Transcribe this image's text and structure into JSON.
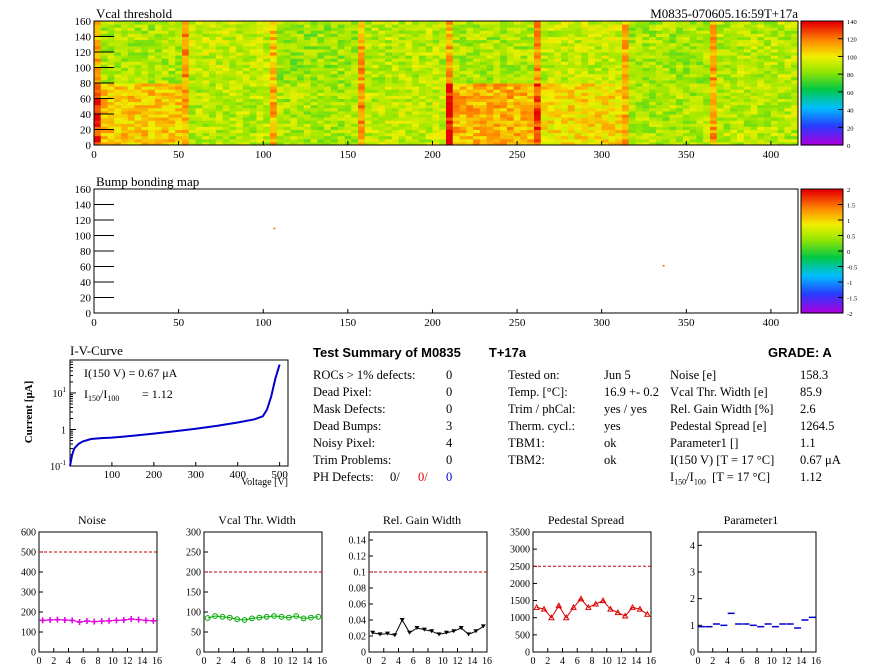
{
  "vcal_map": {
    "title": "Vcal threshold",
    "module_label": "M0835-070605.16:59T+17a",
    "x_ticks": [
      "0",
      "50",
      "100",
      "150",
      "200",
      "250",
      "300",
      "350",
      "400"
    ],
    "y_ticks": [
      "0",
      "20",
      "40",
      "60",
      "80",
      "100",
      "120",
      "140",
      "160"
    ],
    "scale_ticks": [
      "0",
      "20",
      "40",
      "60",
      "80",
      "100",
      "120",
      "140"
    ]
  },
  "bump_map": {
    "title": "Bump bonding map",
    "x_ticks": [
      "0",
      "50",
      "100",
      "150",
      "200",
      "250",
      "300",
      "350",
      "400"
    ],
    "y_ticks": [
      "0",
      "20",
      "40",
      "60",
      "80",
      "100",
      "120",
      "140",
      "160"
    ],
    "scale_ticks": [
      "-2",
      "-1.5",
      "-1",
      "-0.5",
      "0",
      "0.5",
      "1",
      "1.5",
      "2"
    ]
  },
  "iv_curve": {
    "title": "I-V-Curve",
    "current_line": "I(150 V) = 0.67 μA",
    "ratio_line_value": "=  1.12",
    "ylabel": "Current [μA]",
    "xlabel": "Voltage [V]",
    "x_ticks": [
      "100",
      "200",
      "300",
      "400",
      "500"
    ],
    "y_ticks_base": "10",
    "y_ticks_exp": [
      "-1",
      "",
      "1"
    ]
  },
  "summary": {
    "title": "Test Summary of M0835",
    "temp_tag": "T+17a",
    "grade": "GRADE:  A",
    "left": [
      {
        "label": "ROCs > 1% defects:",
        "value": "0"
      },
      {
        "label": "Dead Pixel:",
        "value": "0"
      },
      {
        "label": "Mask Defects:",
        "value": "0"
      },
      {
        "label": "Dead Bumps:",
        "value": "3"
      },
      {
        "label": "Noisy Pixel:",
        "value": "4"
      },
      {
        "label": "Trim Problems:",
        "value": "0"
      }
    ],
    "ph_defects": {
      "label": "PH Defects:",
      "v1": "0/",
      "v2": "0/",
      "v3": "0"
    },
    "middle": [
      {
        "label": "Tested on:",
        "value": "Jun 5"
      },
      {
        "label": "Temp. [°C]:",
        "value": "16.9 +- 0.2"
      },
      {
        "label": "Trim / phCal:",
        "value": "yes / yes"
      },
      {
        "label": "Therm. cycl.:",
        "value": "yes"
      },
      {
        "label": "TBM1:",
        "value": "ok"
      },
      {
        "label": "TBM2:",
        "value": "ok"
      }
    ],
    "right": [
      {
        "label": "Noise [e]",
        "value": "158.3"
      },
      {
        "label": "Vcal Thr. Width [e]",
        "value": "85.9"
      },
      {
        "label": "Rel. Gain Width [%]",
        "value": "2.6"
      },
      {
        "label": "Pedestal Spread [e]",
        "value": "1264.5"
      },
      {
        "label": "Parameter1 []",
        "value": "1.1"
      },
      {
        "label": "I(150 V) [T = 17 °C]",
        "value": "0.67 μA"
      },
      {
        "label": "[T = 17 °C]",
        "value": "1.12"
      }
    ]
  },
  "chart_data": [
    {
      "type": "heatmap",
      "title": "Vcal threshold",
      "xlim": [
        0,
        416
      ],
      "ylim": [
        0,
        160
      ],
      "zlim": [
        0,
        140
      ],
      "description_of_values": "per-pixel Vcal threshold, mostly 75-110 with chip-dependent offsets",
      "chip_means_top": [
        88,
        92,
        85,
        90,
        88,
        92,
        87,
        90
      ],
      "chip_means_bottom": [
        108,
        90,
        88,
        92,
        112,
        104,
        88,
        90
      ]
    },
    {
      "type": "heatmap",
      "title": "Bump bonding map",
      "xlim": [
        0,
        416
      ],
      "ylim": [
        0,
        160
      ],
      "zlim": [
        -2,
        2
      ],
      "points": [
        {
          "x": 106,
          "y": 110
        },
        {
          "x": 336,
          "y": 62
        }
      ]
    },
    {
      "type": "line",
      "title": "I-V-Curve",
      "xlabel": "Voltage [V]",
      "ylabel": "Current [μA]",
      "xlim": [
        0,
        520
      ],
      "ylim": [
        0.1,
        80
      ],
      "yscale": "log",
      "x": [
        0,
        5,
        10,
        20,
        30,
        50,
        75,
        100,
        150,
        200,
        250,
        300,
        350,
        400,
        440,
        460,
        470,
        480,
        490,
        500
      ],
      "y": [
        0.1,
        0.2,
        0.3,
        0.4,
        0.47,
        0.55,
        0.58,
        0.6,
        0.67,
        0.77,
        0.9,
        1.05,
        1.25,
        1.55,
        1.9,
        2.3,
        3.5,
        8,
        25,
        60
      ]
    },
    {
      "type": "line",
      "title": "Noise",
      "xlim": [
        0,
        16
      ],
      "ylim": [
        0,
        600
      ],
      "y_ticks": [
        "0",
        "100",
        "200",
        "300",
        "400",
        "500",
        "600"
      ],
      "x_ticks": [
        "0",
        "2",
        "4",
        "6",
        "8",
        "10",
        "12",
        "14",
        "16"
      ],
      "limit": 500,
      "color": "#e000e0",
      "x": [
        0.5,
        1.5,
        2.5,
        3.5,
        4.5,
        5.5,
        6.5,
        7.5,
        8.5,
        9.5,
        10.5,
        11.5,
        12.5,
        13.5,
        14.5,
        15.5
      ],
      "y": [
        158,
        160,
        162,
        160,
        158,
        150,
        155,
        152,
        154,
        156,
        158,
        160,
        165,
        162,
        158,
        156
      ]
    },
    {
      "type": "line",
      "title": "Vcal Thr. Width",
      "xlim": [
        0,
        16
      ],
      "ylim": [
        0,
        300
      ],
      "y_ticks": [
        "0",
        "50",
        "100",
        "150",
        "200",
        "250",
        "300"
      ],
      "x_ticks": [
        "0",
        "2",
        "4",
        "6",
        "8",
        "10",
        "12",
        "14",
        "16"
      ],
      "limit": 200,
      "color": "#00aa00",
      "x": [
        0.5,
        1.5,
        2.5,
        3.5,
        4.5,
        5.5,
        6.5,
        7.5,
        8.5,
        9.5,
        10.5,
        11.5,
        12.5,
        13.5,
        14.5,
        15.5
      ],
      "y": [
        85,
        90,
        88,
        86,
        82,
        80,
        84,
        86,
        88,
        90,
        88,
        86,
        90,
        84,
        86,
        88
      ]
    },
    {
      "type": "line",
      "title": "Rel. Gain Width",
      "xlim": [
        0,
        16
      ],
      "ylim": [
        0,
        0.15
      ],
      "y_ticks": [
        "0",
        "0.02",
        "0.04",
        "0.06",
        "0.08",
        "0.1",
        "0.12",
        "0.14"
      ],
      "x_ticks": [
        "0",
        "2",
        "4",
        "6",
        "8",
        "10",
        "12",
        "14",
        "16"
      ],
      "limit": 0.1,
      "color": "#000000",
      "x": [
        0.5,
        1.5,
        2.5,
        3.5,
        4.5,
        5.5,
        6.5,
        7.5,
        8.5,
        9.5,
        10.5,
        11.5,
        12.5,
        13.5,
        14.5,
        15.5
      ],
      "y": [
        0.024,
        0.022,
        0.023,
        0.021,
        0.04,
        0.024,
        0.03,
        0.028,
        0.026,
        0.022,
        0.024,
        0.026,
        0.03,
        0.022,
        0.026,
        0.032
      ]
    },
    {
      "type": "line",
      "title": "Pedestal Spread",
      "xlim": [
        0,
        16
      ],
      "ylim": [
        0,
        3500
      ],
      "y_ticks": [
        "0",
        "500",
        "1000",
        "1500",
        "2000",
        "2500",
        "3000",
        "3500"
      ],
      "x_ticks": [
        "0",
        "2",
        "4",
        "6",
        "8",
        "10",
        "12",
        "14",
        "16"
      ],
      "limit": 2500,
      "color": "#dd0000",
      "x": [
        0.5,
        1.5,
        2.5,
        3.5,
        4.5,
        5.5,
        6.5,
        7.5,
        8.5,
        9.5,
        10.5,
        11.5,
        12.5,
        13.5,
        14.5,
        15.5
      ],
      "y": [
        1300,
        1250,
        1000,
        1350,
        1000,
        1300,
        1550,
        1300,
        1400,
        1500,
        1250,
        1150,
        1050,
        1300,
        1250,
        1100
      ]
    },
    {
      "type": "line",
      "title": "Parameter1",
      "xlim": [
        0,
        16
      ],
      "ylim": [
        0,
        4.5
      ],
      "y_ticks": [
        "0",
        "1",
        "2",
        "3",
        "4"
      ],
      "x_ticks": [
        "0",
        "2",
        "4",
        "6",
        "8",
        "10",
        "12",
        "14",
        "16"
      ],
      "color": "#0000cc",
      "x": [
        0.5,
        1.5,
        2.5,
        3.5,
        4.5,
        5.5,
        6.5,
        7.5,
        8.5,
        9.5,
        10.5,
        11.5,
        12.5,
        13.5,
        14.5,
        15.5
      ],
      "y": [
        0.95,
        0.95,
        1.05,
        1.0,
        1.45,
        1.05,
        1.05,
        1.0,
        0.95,
        1.05,
        0.95,
        1.05,
        1.05,
        0.9,
        1.2,
        1.3
      ]
    }
  ]
}
